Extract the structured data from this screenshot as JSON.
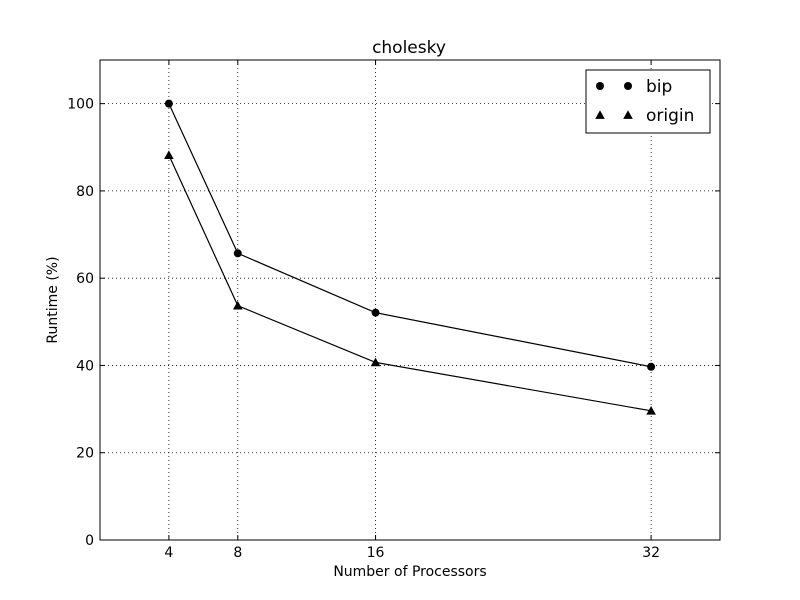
{
  "chart_data": {
    "type": "line",
    "title": "cholesky",
    "xlabel": "Number of Processors",
    "ylabel": "Runtime (%)",
    "x": [
      4,
      8,
      16,
      32
    ],
    "xticks": [
      "4",
      "8",
      "16",
      "32"
    ],
    "yticks": [
      "0",
      "20",
      "40",
      "60",
      "80",
      "100"
    ],
    "xlim": [
      0,
      36
    ],
    "ylim": [
      0,
      110
    ],
    "grid": true,
    "legend_position": "top-right",
    "series": [
      {
        "name": "bip",
        "marker": "circle",
        "values": [
          100,
          65.7,
          52.1,
          39.7
        ]
      },
      {
        "name": "origin",
        "marker": "triangle",
        "values": [
          88.2,
          53.7,
          40.7,
          29.6
        ]
      }
    ]
  }
}
